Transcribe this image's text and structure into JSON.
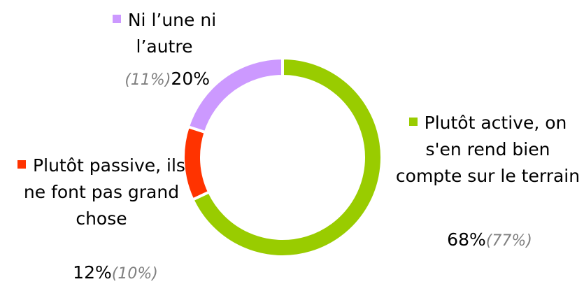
{
  "chart_data": {
    "type": "donut",
    "categories": [
      "Plutôt active, on s'en rend bien compte sur le terrain",
      "Plutôt passive, ils ne font pas grand chose",
      "Ni l’une ni l’autre"
    ],
    "values": [
      68,
      12,
      20
    ],
    "value_labels": [
      "68%",
      "12%",
      "20%"
    ],
    "comparison_labels": [
      "(77%)",
      "(10%)",
      "(11%)"
    ],
    "colors": [
      "#99cc00",
      "#ff3300",
      "#cc99ff"
    ]
  }
}
